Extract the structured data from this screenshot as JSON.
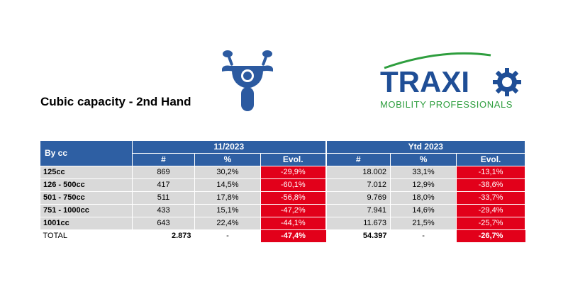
{
  "title": "Cubic capacity - 2nd Hand",
  "icons": {
    "motorcycle": "motorcycle-icon"
  },
  "logo": {
    "word": "TRAXIO",
    "tagline": "MOBILITY PROFESSIONALS",
    "colors": {
      "word": "#1f4e96",
      "tagline": "#2e9e3e",
      "arc": "#2e9e3e"
    }
  },
  "table": {
    "row_header": "By cc",
    "group1": "11/2023",
    "group2": "Ytd 2023",
    "col_headers": [
      "#",
      "%",
      "Evol.",
      "#",
      "%",
      "Evol."
    ],
    "rows": [
      {
        "label": "125cc",
        "v": [
          "869",
          "30,2%",
          "-29,9%",
          "18.002",
          "33,1%",
          "-13,1%"
        ]
      },
      {
        "label": "126 - 500cc",
        "v": [
          "417",
          "14,5%",
          "-60,1%",
          "7.012",
          "12,9%",
          "-38,6%"
        ]
      },
      {
        "label": "501 - 750cc",
        "v": [
          "511",
          "17,8%",
          "-56,8%",
          "9.769",
          "18,0%",
          "-33,7%"
        ]
      },
      {
        "label": "751 - 1000cc",
        "v": [
          "433",
          "15,1%",
          "-47,2%",
          "7.941",
          "14,6%",
          "-29,4%"
        ]
      },
      {
        "label": "1001cc",
        "v": [
          "643",
          "22,4%",
          "-44,1%",
          "11.673",
          "21,5%",
          "-25,7%"
        ]
      }
    ],
    "total": {
      "label": "TOTAL",
      "v": [
        "2.873",
        "-",
        "-47,4%",
        "54.397",
        "-",
        "-26,7%"
      ]
    }
  },
  "colors": {
    "header_bg": "#2e5fa3",
    "row_bg": "#d9d9d9",
    "negative_bg": "#e2001a"
  }
}
